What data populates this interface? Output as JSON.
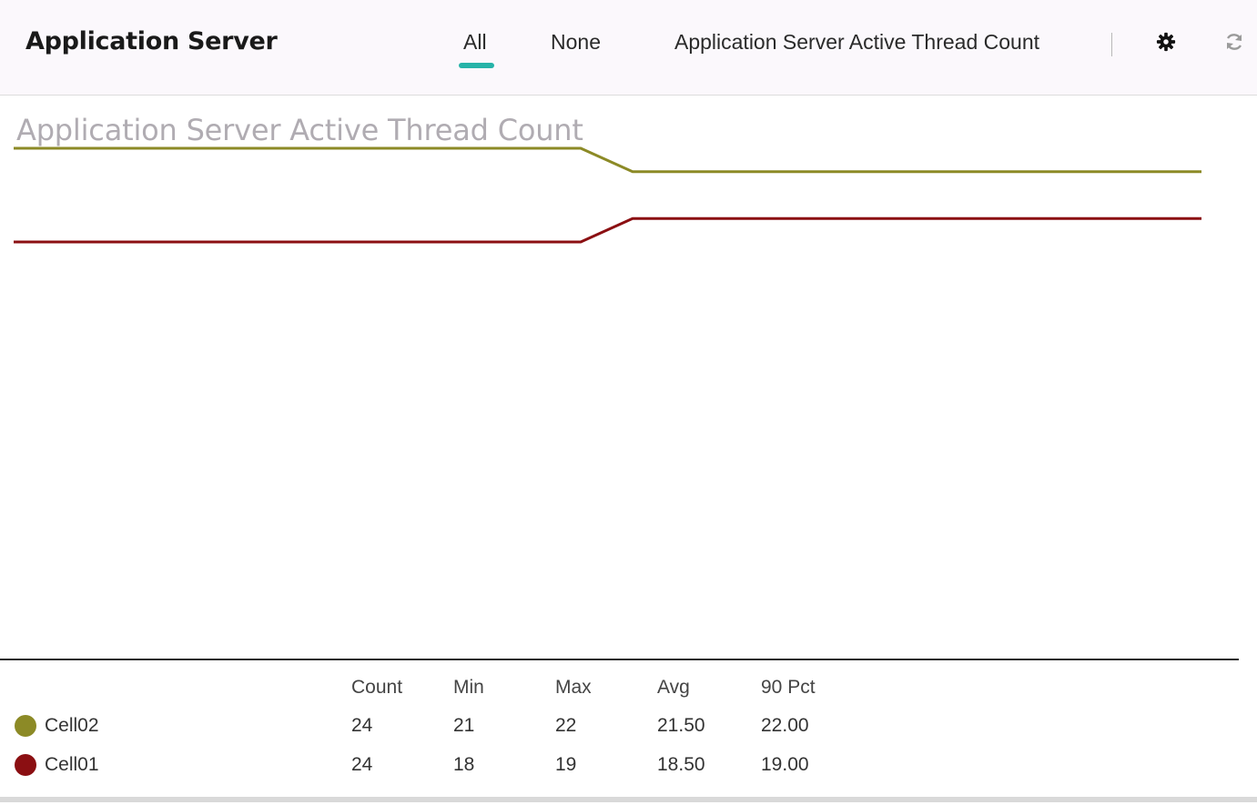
{
  "header": {
    "title": "Application Server",
    "tabs": [
      {
        "label": "All",
        "active": true
      },
      {
        "label": "None",
        "active": false
      },
      {
        "label": "Application Server Active Thread Count",
        "active": false
      }
    ],
    "icons": {
      "settings": "gear-icon",
      "refresh": "refresh-icon"
    },
    "accent_color": "#26b3a8"
  },
  "chart_data": {
    "type": "line",
    "title": "Application Server Active Thread Count",
    "xlabel": "",
    "ylabel": "",
    "x": [
      0,
      1
    ],
    "series": [
      {
        "name": "Cell02",
        "color": "#8c8a26",
        "values": [
          22,
          21
        ]
      },
      {
        "name": "Cell01",
        "color": "#8b0f12",
        "values": [
          18,
          19
        ]
      }
    ],
    "grid": false,
    "legend": "bottom-table"
  },
  "stats": {
    "columns": [
      "Count",
      "Min",
      "Max",
      "Avg",
      "90 Pct"
    ],
    "rows": [
      {
        "name": "Cell02",
        "color": "#8c8a26",
        "count": "24",
        "min": "21",
        "max": "22",
        "avg": "21.50",
        "pct90": "22.00"
      },
      {
        "name": "Cell01",
        "color": "#8b0f12",
        "count": "24",
        "min": "18",
        "max": "19",
        "avg": "18.50",
        "pct90": "19.00"
      }
    ]
  }
}
